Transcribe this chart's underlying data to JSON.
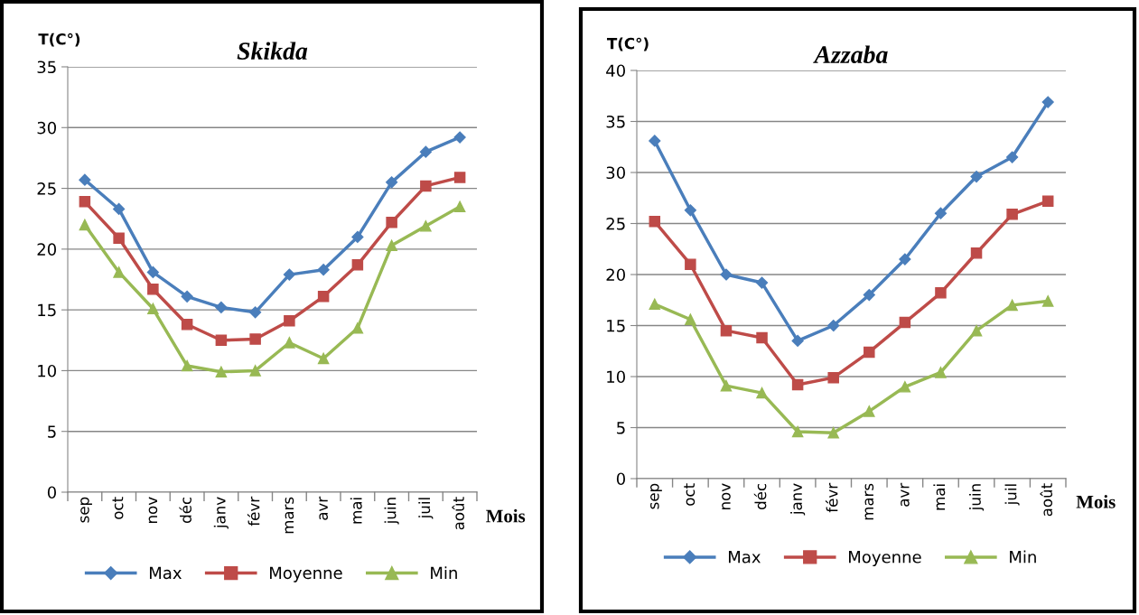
{
  "chart_data": [
    {
      "type": "line",
      "title": "Skikda",
      "ylabel": "T(C°)",
      "xlabel": "Mois",
      "categories": [
        "sep",
        "oct",
        "nov",
        "déc",
        "janv",
        "févr",
        "mars",
        "avr",
        "mai",
        "juin",
        "juil",
        "août"
      ],
      "series": [
        {
          "name": "Max",
          "color": "#4a7ebb",
          "marker": "diamond",
          "values": [
            25.7,
            23.3,
            18.1,
            16.1,
            15.2,
            14.8,
            17.9,
            18.3,
            21.0,
            25.5,
            28.0,
            29.2
          ]
        },
        {
          "name": "Moyenne",
          "color": "#be4b48",
          "marker": "square",
          "values": [
            23.9,
            20.9,
            16.7,
            13.8,
            12.5,
            12.6,
            14.1,
            16.1,
            18.7,
            22.2,
            25.2,
            25.9
          ]
        },
        {
          "name": "Min",
          "color": "#98b954",
          "marker": "triangle",
          "values": [
            22.0,
            18.1,
            15.1,
            10.4,
            9.9,
            10.0,
            12.3,
            11.0,
            13.5,
            20.3,
            21.9,
            23.5
          ]
        }
      ],
      "ylim": [
        0,
        35
      ],
      "yticks": [
        0,
        5,
        10,
        15,
        20,
        25,
        30,
        35
      ],
      "grid": "y",
      "legend": "bottom"
    },
    {
      "type": "line",
      "title": "Azzaba",
      "ylabel": "T(C°)",
      "xlabel": "Mois",
      "categories": [
        "sep",
        "oct",
        "nov",
        "déc",
        "janv",
        "févr",
        "mars",
        "avr",
        "mai",
        "juin",
        "juil",
        "août"
      ],
      "series": [
        {
          "name": "Max",
          "color": "#4a7ebb",
          "marker": "diamond",
          "values": [
            33.1,
            26.3,
            20.0,
            19.2,
            13.5,
            15.0,
            18.0,
            21.5,
            26.0,
            29.6,
            31.5,
            36.9
          ]
        },
        {
          "name": "Moyenne",
          "color": "#be4b48",
          "marker": "square",
          "values": [
            25.2,
            21.0,
            14.5,
            13.8,
            9.2,
            9.9,
            12.4,
            15.3,
            18.2,
            22.1,
            25.9,
            27.2
          ]
        },
        {
          "name": "Min",
          "color": "#98b954",
          "marker": "triangle",
          "values": [
            17.1,
            15.6,
            9.1,
            8.4,
            4.6,
            4.5,
            6.6,
            9.0,
            10.4,
            14.5,
            17.0,
            17.4
          ]
        }
      ],
      "ylim": [
        0,
        40
      ],
      "yticks": [
        0,
        5,
        10,
        15,
        20,
        25,
        30,
        35,
        40
      ],
      "grid": "y",
      "legend": "bottom"
    }
  ]
}
